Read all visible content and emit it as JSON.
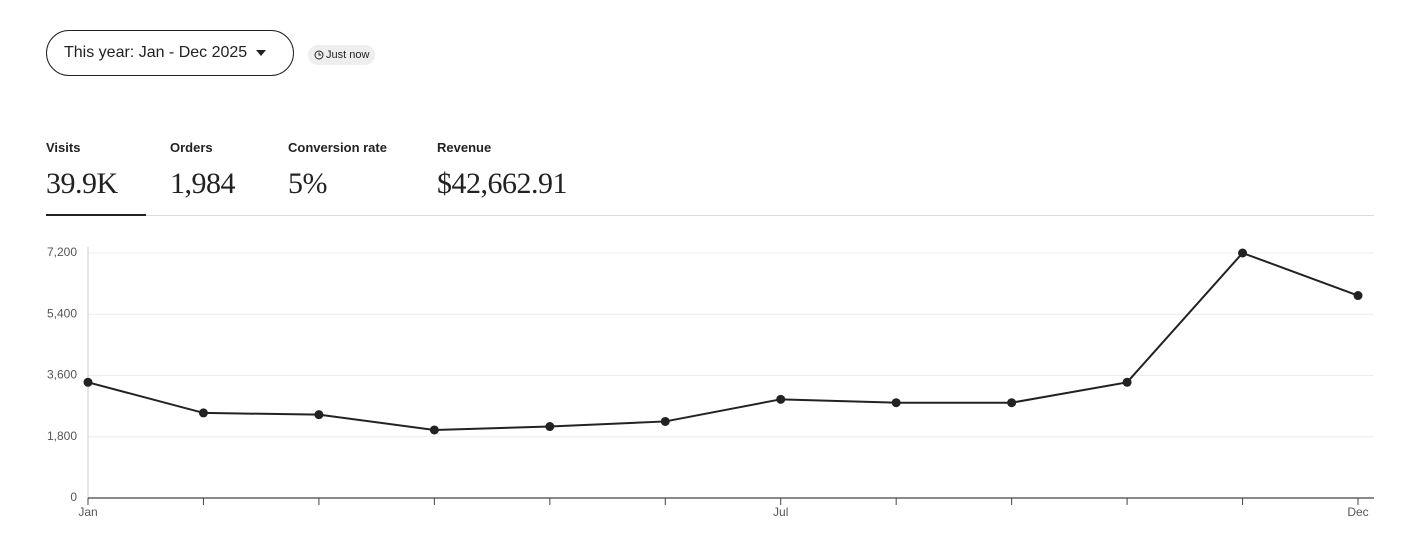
{
  "date_filter": {
    "label": "This year: Jan - Dec 2025",
    "updated": "Just now"
  },
  "metrics": [
    {
      "label": "Visits",
      "value": "39.9K"
    },
    {
      "label": "Orders",
      "value": "1,984"
    },
    {
      "label": "Conversion rate",
      "value": "5%"
    },
    {
      "label": "Revenue",
      "value": "$42,662.91"
    }
  ],
  "chart_data": {
    "type": "line",
    "categories": [
      "Jan",
      null,
      null,
      null,
      null,
      null,
      "Jul",
      null,
      null,
      null,
      null,
      "Dec"
    ],
    "values": [
      3400,
      2500,
      2450,
      2000,
      2100,
      2250,
      2900,
      2800,
      2800,
      3400,
      7200,
      5950
    ],
    "color": "#222222",
    "ylim": [
      0,
      7200
    ],
    "yticks": [
      0,
      {
        "value": 1800,
        "label": "1,800"
      },
      {
        "value": 3600,
        "label": "3,600"
      },
      {
        "value": 5400,
        "label": "5,400"
      },
      {
        "value": 7200,
        "label": "7,200"
      }
    ],
    "grid": true
  }
}
